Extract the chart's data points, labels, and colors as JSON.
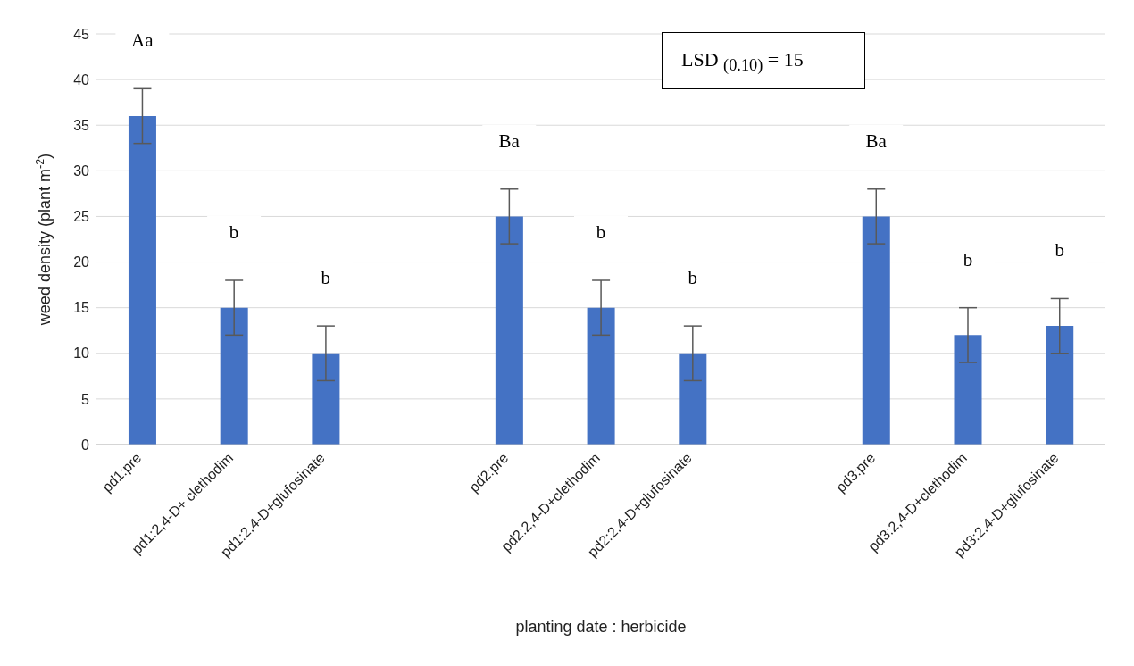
{
  "chart_data": {
    "type": "bar",
    "xlabel": "planting date : herbicide",
    "ylabel": "weed density (plant m$^{-2}$)",
    "categories": [
      "pd1:pre",
      "pd1:2,4-D+ clethodim",
      "pd1:2,4-D+glufosinate",
      null,
      "pd2:pre",
      "pd2:2,4-D+clethodim",
      "pd2:2,4-D+glufosinate",
      null,
      "pd3:pre",
      "pd3:2,4-D+clethodim",
      "pd3:2,4-D+glufosinate"
    ],
    "values": [
      36,
      15,
      10,
      null,
      25,
      15,
      10,
      null,
      25,
      12,
      13
    ],
    "errors": [
      3,
      3,
      3,
      null,
      3,
      3,
      3,
      null,
      3,
      3,
      3
    ],
    "color": "#4472c4",
    "ylim": [
      0,
      45
    ],
    "yticks": [
      0,
      5,
      10,
      15,
      20,
      25,
      30,
      35,
      40,
      45
    ],
    "grid": "y",
    "legend": false,
    "annotations": [
      "Aa",
      "b",
      "b",
      "Ba",
      "b",
      "b",
      "Ba",
      "b",
      "b",
      "LSD $_{(0.10)}$ = 15"
    ]
  }
}
